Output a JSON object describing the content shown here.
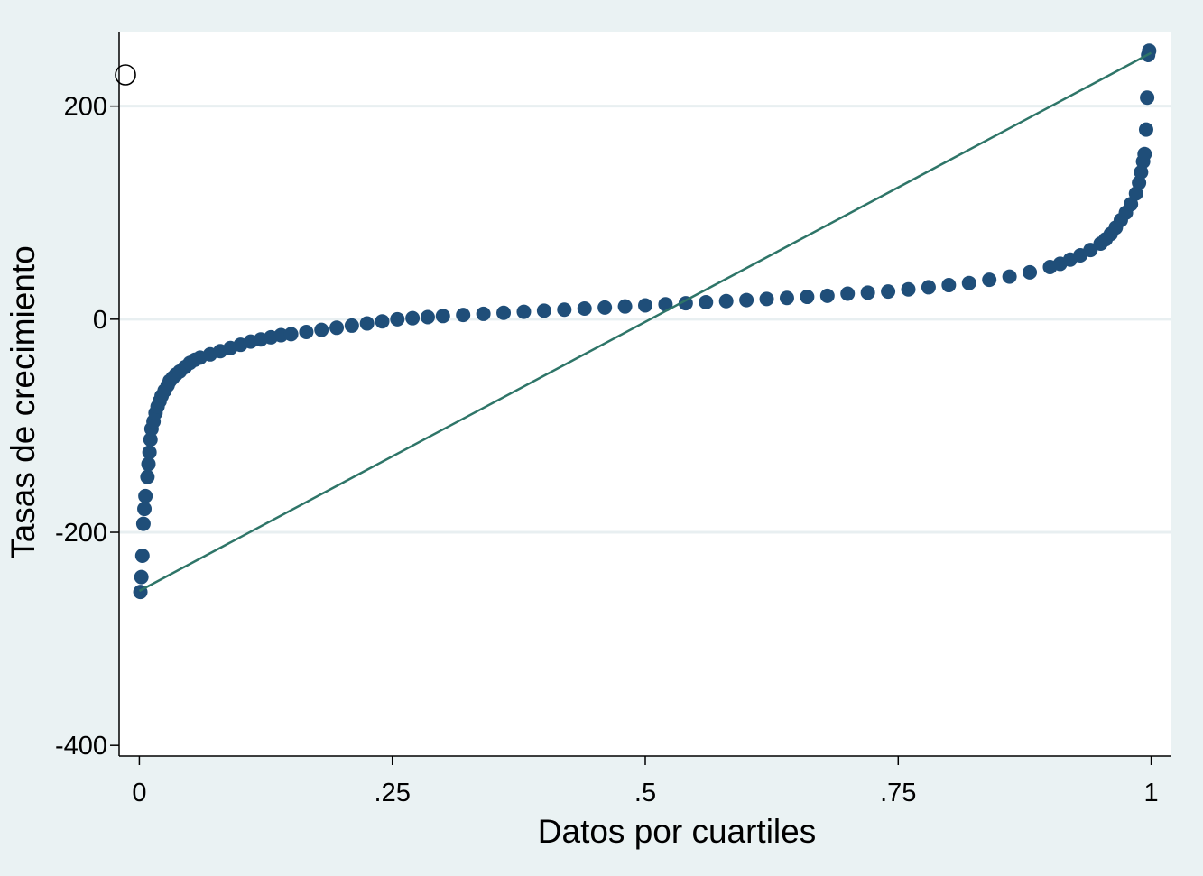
{
  "chart_data": {
    "type": "scatter",
    "title": "",
    "xlabel": "Datos por cuartiles",
    "ylabel": "Tasas de crecimiento",
    "xlim": [
      -0.02,
      1.02
    ],
    "ylim": [
      -410,
      270
    ],
    "x_ticks": [
      {
        "value": 0,
        "label": "0"
      },
      {
        "value": 0.25,
        "label": ".25"
      },
      {
        "value": 0.5,
        "label": ".5"
      },
      {
        "value": 0.75,
        "label": ".75"
      },
      {
        "value": 1,
        "label": "1"
      }
    ],
    "y_ticks": [
      {
        "value": 200,
        "label": "200"
      },
      {
        "value": 0,
        "label": "0"
      },
      {
        "value": -200,
        "label": "-200"
      },
      {
        "value": -400,
        "label": "-400"
      }
    ],
    "grid": "horizontal",
    "series": [
      {
        "kind": "points",
        "color": "#1f4e79",
        "points": [
          [
            0.001,
            -256
          ],
          [
            0.002,
            -242
          ],
          [
            0.003,
            -222
          ],
          [
            0.004,
            -192
          ],
          [
            0.005,
            -178
          ],
          [
            0.006,
            -166
          ],
          [
            0.008,
            -148
          ],
          [
            0.009,
            -136
          ],
          [
            0.01,
            -125
          ],
          [
            0.011,
            -113
          ],
          [
            0.012,
            -103
          ],
          [
            0.014,
            -96
          ],
          [
            0.016,
            -88
          ],
          [
            0.018,
            -82
          ],
          [
            0.02,
            -77
          ],
          [
            0.022,
            -72
          ],
          [
            0.025,
            -67
          ],
          [
            0.028,
            -62
          ],
          [
            0.03,
            -58
          ],
          [
            0.033,
            -55
          ],
          [
            0.036,
            -52
          ],
          [
            0.04,
            -49
          ],
          [
            0.045,
            -45
          ],
          [
            0.05,
            -41
          ],
          [
            0.055,
            -38
          ],
          [
            0.06,
            -36
          ],
          [
            0.07,
            -33
          ],
          [
            0.08,
            -30
          ],
          [
            0.09,
            -27
          ],
          [
            0.1,
            -24
          ],
          [
            0.11,
            -21
          ],
          [
            0.12,
            -19
          ],
          [
            0.13,
            -17
          ],
          [
            0.14,
            -15
          ],
          [
            0.15,
            -14
          ],
          [
            0.165,
            -12
          ],
          [
            0.18,
            -10
          ],
          [
            0.195,
            -8
          ],
          [
            0.21,
            -6
          ],
          [
            0.225,
            -4
          ],
          [
            0.24,
            -2
          ],
          [
            0.255,
            0
          ],
          [
            0.27,
            1
          ],
          [
            0.285,
            2
          ],
          [
            0.3,
            3
          ],
          [
            0.32,
            4
          ],
          [
            0.34,
            5
          ],
          [
            0.36,
            6
          ],
          [
            0.38,
            7
          ],
          [
            0.4,
            8
          ],
          [
            0.42,
            9
          ],
          [
            0.44,
            10
          ],
          [
            0.46,
            11
          ],
          [
            0.48,
            12
          ],
          [
            0.5,
            13
          ],
          [
            0.52,
            14
          ],
          [
            0.54,
            15
          ],
          [
            0.56,
            16
          ],
          [
            0.58,
            17
          ],
          [
            0.6,
            18
          ],
          [
            0.62,
            19
          ],
          [
            0.64,
            20
          ],
          [
            0.66,
            21
          ],
          [
            0.68,
            22
          ],
          [
            0.7,
            24
          ],
          [
            0.72,
            25
          ],
          [
            0.74,
            26
          ],
          [
            0.76,
            28
          ],
          [
            0.78,
            30
          ],
          [
            0.8,
            32
          ],
          [
            0.82,
            34
          ],
          [
            0.84,
            37
          ],
          [
            0.86,
            40
          ],
          [
            0.88,
            44
          ],
          [
            0.9,
            49
          ],
          [
            0.91,
            52
          ],
          [
            0.92,
            56
          ],
          [
            0.93,
            60
          ],
          [
            0.94,
            65
          ],
          [
            0.95,
            71
          ],
          [
            0.955,
            75
          ],
          [
            0.96,
            80
          ],
          [
            0.965,
            86
          ],
          [
            0.97,
            93
          ],
          [
            0.975,
            100
          ],
          [
            0.98,
            108
          ],
          [
            0.985,
            118
          ],
          [
            0.988,
            128
          ],
          [
            0.99,
            138
          ],
          [
            0.992,
            148
          ],
          [
            0.9935,
            155
          ],
          [
            0.995,
            178
          ],
          [
            0.996,
            208
          ],
          [
            0.997,
            248
          ],
          [
            0.998,
            252
          ]
        ]
      },
      {
        "kind": "line",
        "color": "#2e7568",
        "points": [
          [
            0,
            -255
          ],
          [
            1,
            250
          ]
        ]
      }
    ]
  }
}
